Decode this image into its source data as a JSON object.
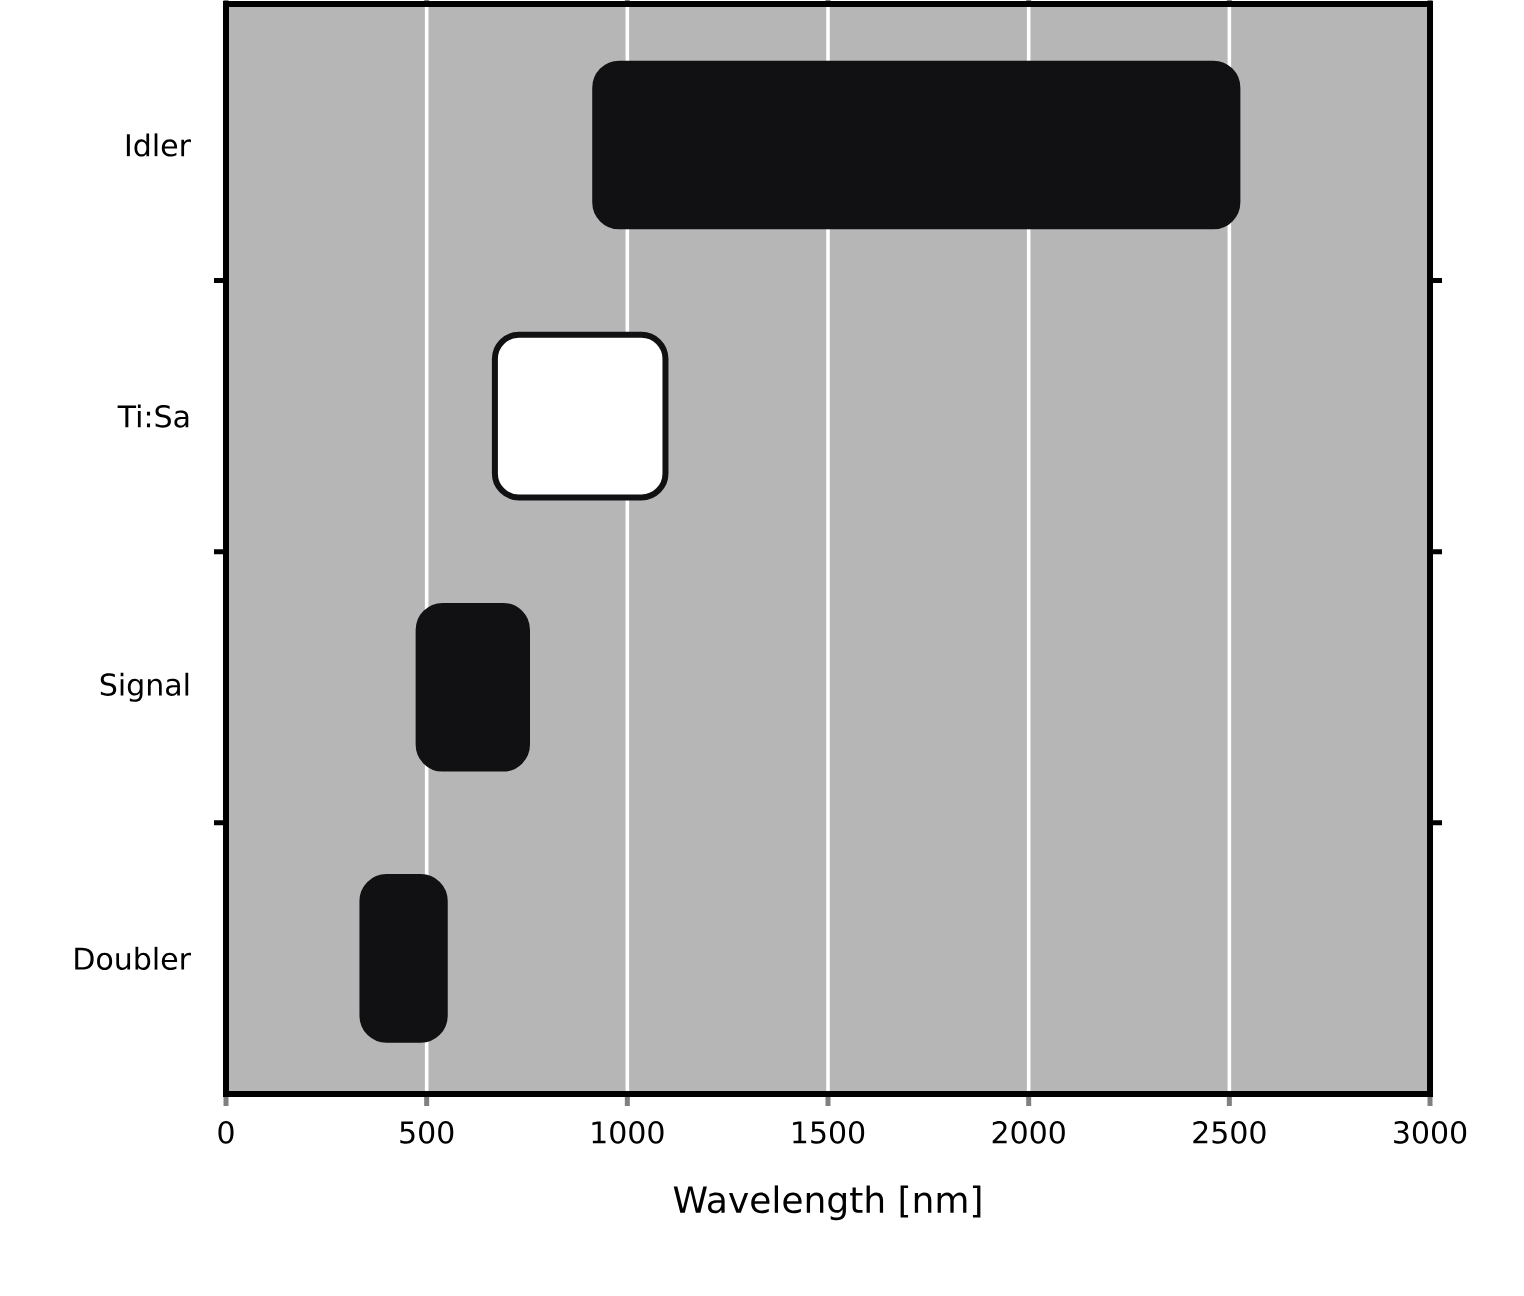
{
  "chart_data": {
    "type": "bar",
    "orientation": "horizontal",
    "categories": [
      "Idler",
      "Ti:Sa",
      "Signal",
      "Doubler"
    ],
    "base": [
      920,
      670,
      480,
      340
    ],
    "values": [
      1600,
      425,
      270,
      205
    ],
    "colors": [
      "#111113",
      "#ffffff",
      "#111113",
      "#111113"
    ],
    "xlabel": "Wavelength [nm]",
    "xlim": [
      0,
      3000
    ],
    "xticks": [
      0,
      500,
      1000,
      1500,
      2000,
      2500,
      3000
    ],
    "grid": "x"
  }
}
